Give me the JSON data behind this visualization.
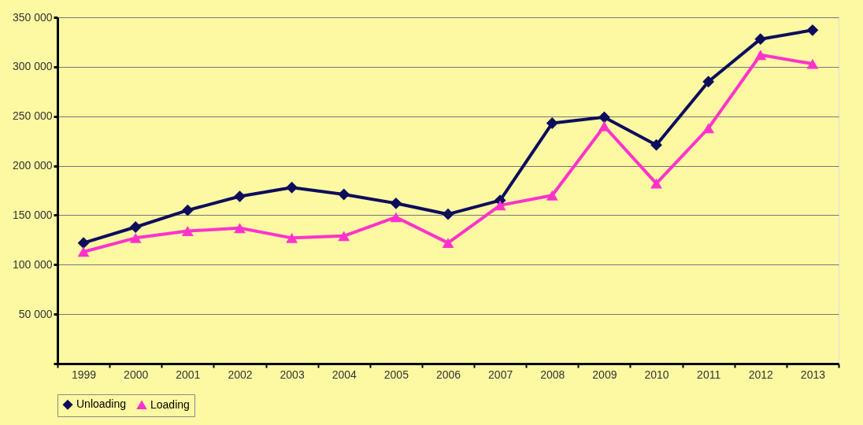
{
  "chart_data": {
    "type": "line",
    "categories": [
      "1999",
      "2000",
      "2001",
      "2002",
      "2003",
      "2004",
      "2005",
      "2006",
      "2007",
      "2008",
      "2009",
      "2010",
      "2011",
      "2012",
      "2013"
    ],
    "series": [
      {
        "name": "Unloading",
        "color": "#0d0d5c",
        "marker": "diamond",
        "values": [
          122000,
          138000,
          155000,
          169000,
          178000,
          171000,
          162000,
          151000,
          165000,
          243000,
          249000,
          221000,
          285000,
          328000,
          337000
        ]
      },
      {
        "name": "Loading",
        "color": "#ff33cc",
        "marker": "triangle",
        "values": [
          113000,
          127000,
          134000,
          137000,
          127000,
          129000,
          148000,
          122000,
          160000,
          170000,
          240000,
          182000,
          238000,
          312000,
          303000
        ]
      }
    ],
    "ylim": [
      0,
      350000
    ],
    "yticks": [
      {
        "value": 0,
        "label": null
      },
      {
        "value": 50000,
        "label": "50 000"
      },
      {
        "value": 100000,
        "label": "100 000"
      },
      {
        "value": 150000,
        "label": "150 000"
      },
      {
        "value": 200000,
        "label": "200 000"
      },
      {
        "value": 250000,
        "label": "250 000"
      },
      {
        "value": 300000,
        "label": "300 000"
      },
      {
        "value": 350000,
        "label": "350 000"
      }
    ],
    "grid": "y",
    "legend": "bottom",
    "line_style": "solid"
  }
}
